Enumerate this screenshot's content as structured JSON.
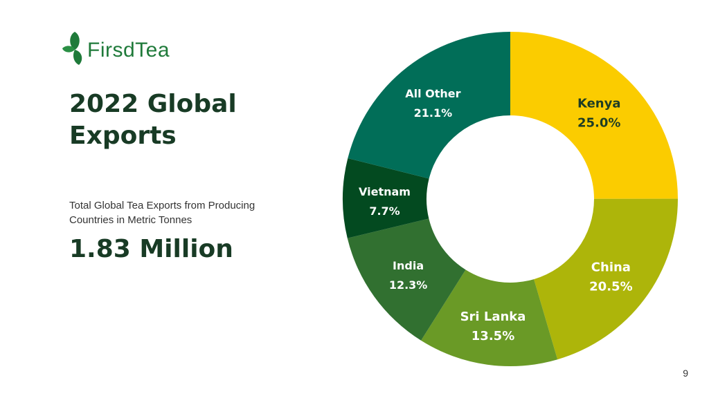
{
  "brand": {
    "logo_text": "FirsdTea"
  },
  "page": {
    "title": "2022 Global Exports",
    "subtitle": "Total Global Tea Exports from Producing Countries in Metric Tonnes",
    "big_number": "1.83 Million",
    "page_number": "9"
  },
  "colors": {
    "title": "#183b25",
    "brand_green": "#1f7a3a"
  },
  "chart_data": {
    "type": "pie",
    "donut": true,
    "unit": "%",
    "categories": [
      "Kenya",
      "China",
      "Sri Lanka",
      "India",
      "Vietnam",
      "All Other"
    ],
    "values": [
      25.0,
      20.5,
      13.5,
      12.3,
      7.7,
      21.1
    ],
    "labels": [
      "25.0%",
      "20.5%",
      "13.5%",
      "12.3%",
      "7.7%",
      "21.1%"
    ],
    "colors": [
      "#fbcc00",
      "#adb50a",
      "#6a9a26",
      "#317030",
      "#034a20",
      "#016e58"
    ],
    "label_colors": [
      "#1e3d24",
      "#ffffff",
      "#ffffff",
      "#ffffff",
      "#ffffff",
      "#ffffff"
    ],
    "start_angle_deg": 0,
    "direction": "clockwise",
    "legend": "none"
  }
}
